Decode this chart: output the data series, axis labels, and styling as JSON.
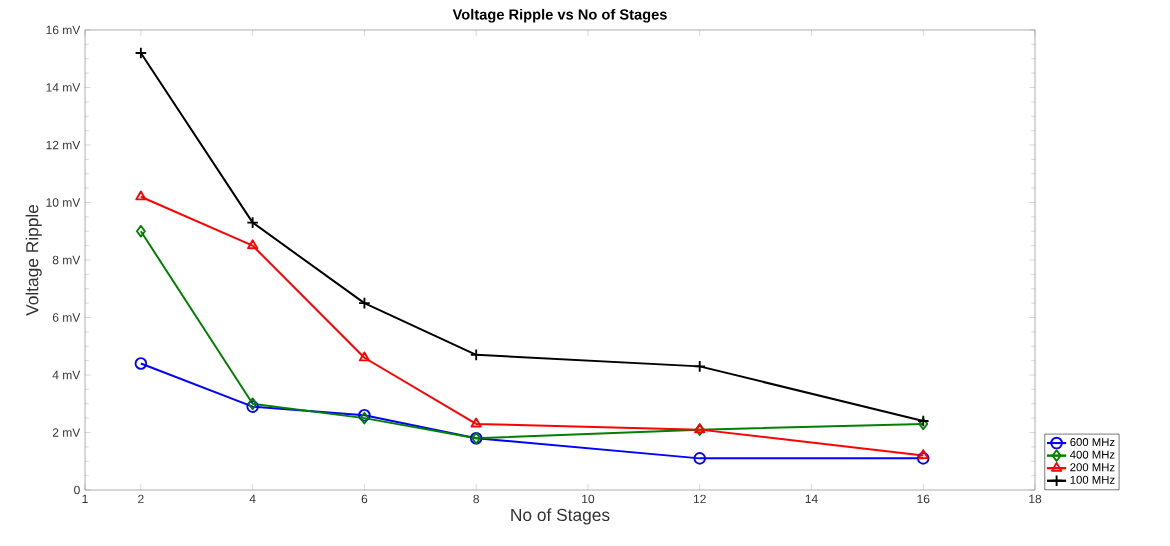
{
  "chart_data": {
    "type": "line",
    "title": "Voltage Ripple vs No of Stages",
    "xlabel": "No of Stages",
    "ylabel": "Voltage Ripple",
    "x": [
      2,
      4,
      6,
      8,
      12,
      16
    ],
    "series": [
      {
        "name": "600 MHz",
        "color": "#0000ff",
        "marker": "circle",
        "values": [
          4.4,
          2.9,
          2.6,
          1.8,
          1.1,
          1.1
        ]
      },
      {
        "name": "400 MHz",
        "color": "#008000",
        "marker": "diamond",
        "values": [
          9.0,
          3.0,
          2.5,
          1.8,
          2.1,
          2.3
        ]
      },
      {
        "name": "200 MHz",
        "color": "#ff0000",
        "marker": "triangle",
        "values": [
          10.2,
          8.5,
          4.6,
          2.3,
          2.1,
          1.2
        ]
      },
      {
        "name": "100 MHz",
        "color": "#000000",
        "marker": "cross",
        "values": [
          15.2,
          9.3,
          6.5,
          4.7,
          4.3,
          2.4
        ]
      }
    ],
    "xlim": [
      1,
      18
    ],
    "xticks": [
      1,
      2,
      4,
      6,
      8,
      10,
      12,
      14,
      16,
      18
    ],
    "ylim": [
      0,
      16
    ],
    "yticks": [
      0,
      {
        "value": 2,
        "label": "2 mV"
      },
      {
        "value": 4,
        "label": "4 mV"
      },
      {
        "value": 6,
        "label": "6 mV"
      },
      {
        "value": 8,
        "label": "8 mV"
      },
      {
        "value": 10,
        "label": "10 mV"
      },
      {
        "value": 12,
        "label": "12 mV"
      },
      {
        "value": 14,
        "label": "14 mV"
      },
      {
        "value": 16,
        "label": "16 mV"
      }
    ],
    "grid": false,
    "legend": "bottom right",
    "line_style": "solid"
  }
}
